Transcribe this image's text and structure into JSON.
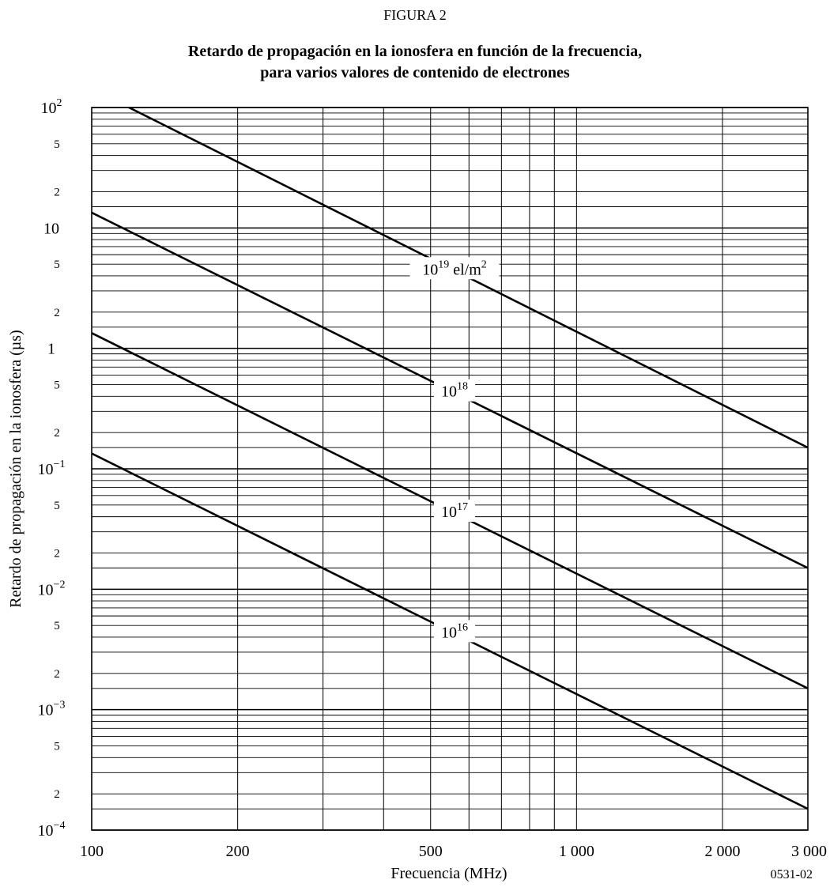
{
  "figure_label": "FIGURA 2",
  "figure_code": "0531-02",
  "chart_data": {
    "type": "line",
    "title": "Retardo de propagación en la ionosfera en función de la frecuencia,",
    "subtitle": "para varios valores de contenido de electrones",
    "xlabel": "Frecuencia (MHz)",
    "ylabel": "Retardo de propagación en la ionosfera (µs)",
    "x_scale": "log",
    "y_scale": "log",
    "xlim": [
      100,
      3000
    ],
    "ylim": [
      0.0001,
      100
    ],
    "grid": true,
    "x_ticks": [
      {
        "value": 100,
        "label": "100"
      },
      {
        "value": 200,
        "label": "200"
      },
      {
        "value": 500,
        "label": "500"
      },
      {
        "value": 1000,
        "label": "1 000"
      },
      {
        "value": 2000,
        "label": "2 000"
      },
      {
        "value": 3000,
        "label": "3 000"
      }
    ],
    "y_ticks": [
      {
        "value": 100,
        "base": "10",
        "exp": "2"
      },
      {
        "value": 50,
        "base": "5",
        "exp": ""
      },
      {
        "value": 20,
        "base": "2",
        "exp": ""
      },
      {
        "value": 10,
        "base": "10",
        "exp": ""
      },
      {
        "value": 5,
        "base": "5",
        "exp": ""
      },
      {
        "value": 2,
        "base": "2",
        "exp": ""
      },
      {
        "value": 1,
        "base": "1",
        "exp": ""
      },
      {
        "value": 0.5,
        "base": "5",
        "exp": ""
      },
      {
        "value": 0.2,
        "base": "2",
        "exp": ""
      },
      {
        "value": 0.1,
        "base": "10",
        "exp": "−1"
      },
      {
        "value": 0.05,
        "base": "5",
        "exp": ""
      },
      {
        "value": 0.02,
        "base": "2",
        "exp": ""
      },
      {
        "value": 0.01,
        "base": "10",
        "exp": "−2"
      },
      {
        "value": 0.005,
        "base": "5",
        "exp": ""
      },
      {
        "value": 0.002,
        "base": "2",
        "exp": ""
      },
      {
        "value": 0.001,
        "base": "10",
        "exp": "−3"
      },
      {
        "value": 0.0005,
        "base": "5",
        "exp": ""
      },
      {
        "value": 0.0002,
        "base": "2",
        "exp": ""
      },
      {
        "value": 0.0001,
        "base": "10",
        "exp": "−4"
      }
    ],
    "series": [
      {
        "label_base": "10",
        "label_exp": "19",
        "label_unit": " el/m",
        "label_unit_exp": "2",
        "label_x": 575,
        "x": [
          119.4,
          3000
        ],
        "y": [
          100,
          0.15
        ]
      },
      {
        "label_base": "10",
        "label_exp": "18",
        "label_unit": "",
        "label_unit_exp": "",
        "label_x": 575,
        "x": [
          100,
          3000
        ],
        "y": [
          13.4,
          0.015
        ]
      },
      {
        "label_base": "10",
        "label_exp": "17",
        "label_unit": "",
        "label_unit_exp": "",
        "label_x": 575,
        "x": [
          100,
          3000
        ],
        "y": [
          1.34,
          0.0015
        ]
      },
      {
        "label_base": "10",
        "label_exp": "16",
        "label_unit": "",
        "label_unit_exp": "",
        "label_x": 575,
        "x": [
          100,
          3000
        ],
        "y": [
          0.134,
          0.00015
        ]
      }
    ]
  }
}
